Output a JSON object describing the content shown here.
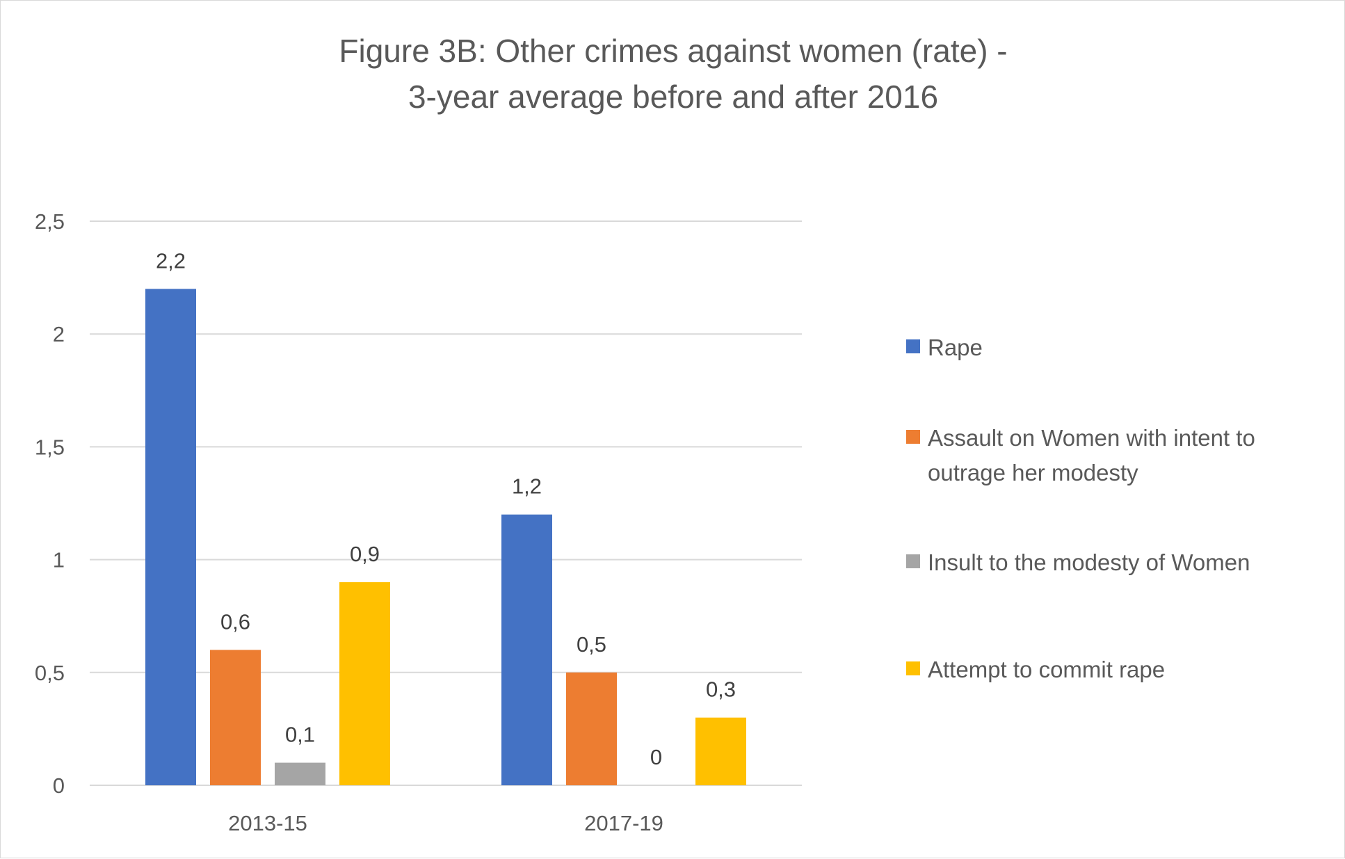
{
  "chart_data": {
    "type": "bar",
    "title_lines": [
      "Figure 3B: Other crimes against women (rate) -",
      "3-year average before and after 2016"
    ],
    "categories": [
      "2013-15",
      "2017-19"
    ],
    "series": [
      {
        "name": "Rape",
        "color": "#4472C4",
        "values": [
          2.2,
          1.2
        ],
        "labels": [
          "2,2",
          "1,2"
        ]
      },
      {
        "name": "Assault on Women with intent to outrage her modesty",
        "legend_lines": [
          "Assault on Women with intent to",
          "outrage her modesty"
        ],
        "color": "#ED7D31",
        "values": [
          0.6,
          0.5
        ],
        "labels": [
          "0,6",
          "0,5"
        ]
      },
      {
        "name": "Insult to the modesty of Women",
        "color": "#A5A5A5",
        "values": [
          0.1,
          0
        ],
        "labels": [
          "0,1",
          "0"
        ]
      },
      {
        "name": "Attempt to commit rape",
        "color": "#FFC000",
        "values": [
          0.9,
          0.3
        ],
        "labels": [
          "0,9",
          "0,3"
        ]
      }
    ],
    "y_ticks": [
      0,
      0.5,
      1,
      1.5,
      2,
      2.5
    ],
    "y_tick_labels": [
      "0",
      "0,5",
      "1",
      "1,5",
      "2",
      "2,5"
    ],
    "ylim": [
      0,
      2.5
    ],
    "grid": true,
    "legend_position": "right",
    "xlabel": "",
    "ylabel": ""
  }
}
